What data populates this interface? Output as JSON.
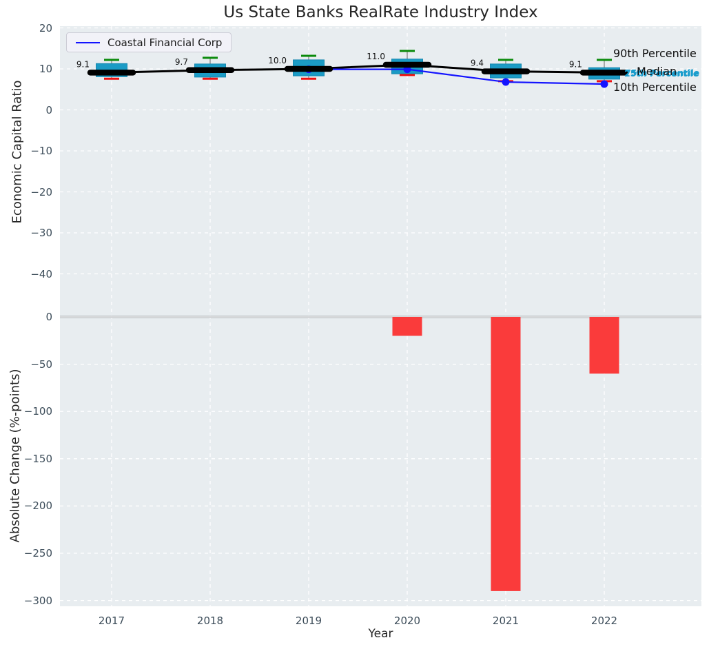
{
  "title": "Us State Banks RealRate Industry Index",
  "legend": {
    "label": "Coastal Financial Corp"
  },
  "annotations": {
    "p90": "90th Percentile",
    "median": "Median",
    "p75": "75th Percentile",
    "p25": "25th Percentile",
    "p10": "10th Percentile"
  },
  "colors": {
    "axes_bg": "#e8edf0",
    "grid": "#ffffff",
    "box_fill": "#1b9bc5",
    "box_edge": "#1587ae",
    "cap_high": "#0a8a0a",
    "cap_low": "#ee1111",
    "whisker": "#8a8a8a",
    "median_line": "#000000",
    "company_line": "#1414ff",
    "bar": "#fa3b3b",
    "percentile_label": "#189ccc",
    "tick": "#3c4c59",
    "zero_line": "#b2b6ba"
  },
  "chart_data": [
    {
      "type": "boxplot+line",
      "panel": "top",
      "title": "Us State Banks RealRate Industry Index",
      "ylabel": "Economic Capital Ratio",
      "xlabel": "",
      "yticks": [
        20,
        10,
        0,
        -10,
        -20,
        -30,
        -40
      ],
      "ylim": [
        -50.6,
        20.4
      ],
      "grid": true,
      "legend_position": "upper-left",
      "categories": [
        "2017",
        "2018",
        "2019",
        "2020",
        "2021",
        "2022"
      ],
      "series": [
        {
          "name": "90th Percentile",
          "values": [
            12.2,
            12.7,
            13.2,
            14.4,
            12.2,
            12.2
          ]
        },
        {
          "name": "75th Percentile",
          "values": [
            11.3,
            11.2,
            12.2,
            12.4,
            11.2,
            10.3
          ]
        },
        {
          "name": "Median",
          "values": [
            9.1,
            9.7,
            10.0,
            11.0,
            9.4,
            9.1
          ]
        },
        {
          "name": "25th Percentile",
          "values": [
            8.1,
            8.0,
            8.3,
            8.8,
            7.8,
            7.5
          ]
        },
        {
          "name": "10th Percentile",
          "values": [
            7.6,
            7.6,
            7.6,
            8.5,
            7.0,
            7.0
          ]
        },
        {
          "name": "Coastal Financial Corp",
          "categories": [
            "2019",
            "2020",
            "2021",
            "2022"
          ],
          "values": [
            9.9,
            9.9,
            6.8,
            6.3
          ]
        }
      ],
      "point_labels": {
        "series": "Median",
        "values": [
          "9.1",
          "9.7",
          "10.0",
          "11.0",
          "9.4",
          "9.1"
        ]
      }
    },
    {
      "type": "bar",
      "panel": "bottom",
      "ylabel": "Absolute Change (%-points)",
      "xlabel": "Year",
      "yticks": [
        0,
        -50,
        -100,
        -150,
        -200,
        -250,
        -300
      ],
      "ylim": [
        -306,
        11
      ],
      "grid": true,
      "categories": [
        "2017",
        "2018",
        "2019",
        "2020",
        "2021",
        "2022"
      ],
      "values": [
        null,
        null,
        null,
        -20,
        -290,
        -60
      ]
    }
  ]
}
